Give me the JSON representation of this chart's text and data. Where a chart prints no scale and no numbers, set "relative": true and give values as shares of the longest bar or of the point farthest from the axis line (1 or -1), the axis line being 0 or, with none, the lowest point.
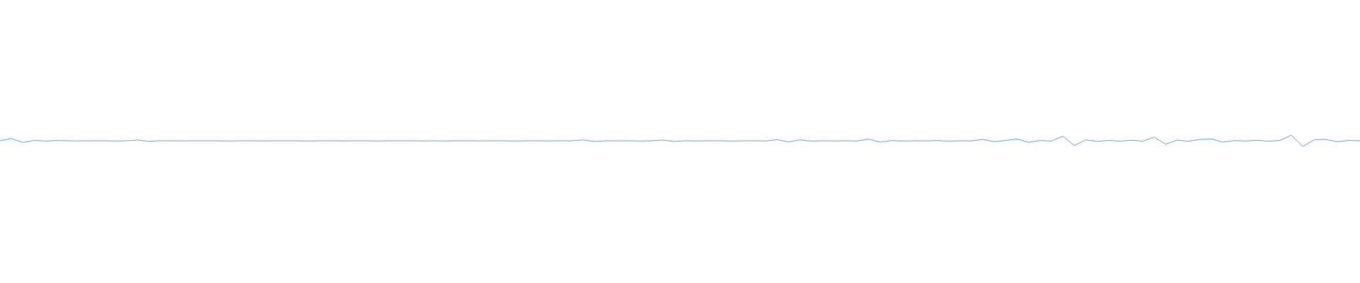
{
  "chart_data": {
    "type": "line",
    "relative": true,
    "color": "#4ea6e0",
    "categories": [
      null,
      null,
      null,
      null,
      null,
      null,
      null,
      null,
      null,
      null,
      null,
      null,
      null,
      null,
      null,
      null,
      null,
      null,
      null,
      null,
      null,
      null,
      null,
      null,
      null,
      null,
      null,
      null,
      null,
      null,
      null,
      null,
      null,
      null,
      null,
      null,
      null,
      null,
      null,
      null,
      null,
      null,
      null,
      null,
      null,
      null,
      null,
      null,
      null,
      null,
      null,
      null,
      null,
      null,
      null,
      null,
      null,
      null,
      null,
      null,
      null,
      null,
      null,
      null,
      null,
      null,
      null,
      null,
      null,
      null,
      null,
      null,
      null,
      null,
      null,
      null,
      null,
      null,
      null,
      null,
      null,
      null,
      null,
      null,
      null,
      null,
      null,
      null,
      null,
      null,
      null,
      null,
      null,
      null,
      null,
      null,
      null,
      null,
      null,
      null,
      null,
      null,
      null,
      null,
      null,
      null,
      null,
      null,
      null,
      null,
      null,
      null,
      null,
      null,
      null,
      null,
      null,
      null,
      null,
      null
    ],
    "values": [
      0.5,
      0.7,
      0.35,
      0.53,
      0.48,
      0.52,
      0.5,
      0.49,
      0.5,
      0.5,
      0.48,
      0.5,
      0.56,
      0.46,
      0.5,
      0.5,
      0.49,
      0.5,
      0.5,
      0.5,
      0.48,
      0.5,
      0.5,
      0.49,
      0.5,
      0.5,
      0.5,
      0.48,
      0.5,
      0.5,
      0.49,
      0.5,
      0.5,
      0.48,
      0.5,
      0.5,
      0.5,
      0.49,
      0.5,
      0.48,
      0.5,
      0.5,
      0.49,
      0.5,
      0.5,
      0.48,
      0.5,
      0.5,
      0.49,
      0.5,
      0.5,
      0.58,
      0.44,
      0.5,
      0.49,
      0.5,
      0.48,
      0.5,
      0.56,
      0.45,
      0.5,
      0.49,
      0.5,
      0.5,
      0.48,
      0.5,
      0.5,
      0.49,
      0.6,
      0.4,
      0.58,
      0.47,
      0.5,
      0.49,
      0.5,
      0.48,
      0.65,
      0.38,
      0.52,
      0.48,
      0.5,
      0.49,
      0.52,
      0.47,
      0.5,
      0.49,
      0.62,
      0.42,
      0.53,
      0.66,
      0.36,
      0.52,
      0.48,
      0.9,
      0.08,
      0.58,
      0.45,
      0.53,
      0.47,
      0.55,
      0.46,
      0.82,
      0.2,
      0.56,
      0.46,
      0.62,
      0.66,
      0.38,
      0.52,
      0.48,
      0.55,
      0.46,
      0.53,
      1,
      0,
      0.6,
      0.62,
      0.42,
      0.53,
      0.5
    ]
  }
}
